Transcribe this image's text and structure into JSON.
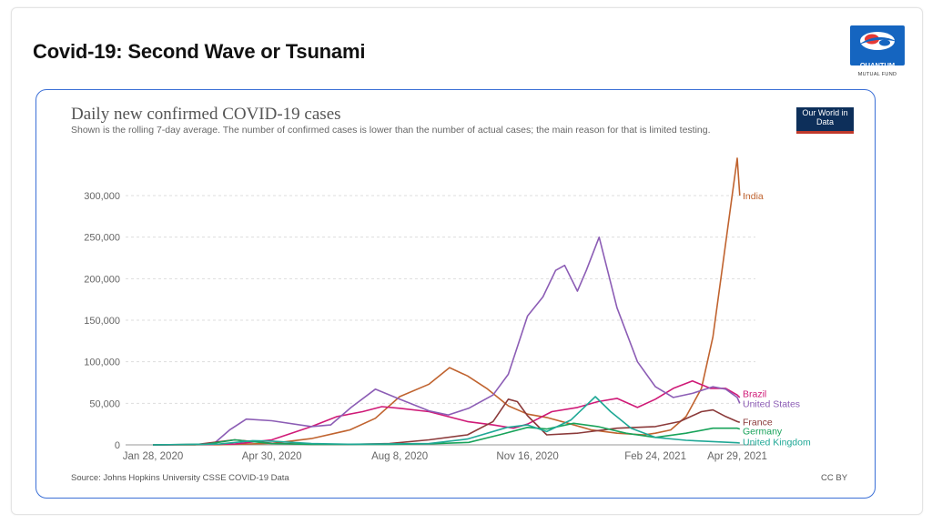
{
  "slide": {
    "title": "Covid-19: Second Wave or Tsunami"
  },
  "logo": {
    "name": "QUANTUM",
    "subtitle": "MUTUAL FUND",
    "colors": {
      "primary": "#1565c0",
      "accent": "#e53935"
    }
  },
  "chart_header": {
    "title": "Daily new confirmed COVID-19 cases",
    "subtitle": "Shown is the rolling 7-day average. The number of confirmed cases is lower than the number of actual cases; the main reason for that is limited testing.",
    "badge": "Our World in Data",
    "source": "Source: Johns Hopkins University CSSE COVID-19 Data",
    "license": "CC BY"
  },
  "chart_data": {
    "type": "line",
    "title": "Daily new confirmed COVID-19 cases",
    "x_type": "date",
    "xlim": [
      "2020-01-28",
      "2021-04-29"
    ],
    "x_ticks": [
      {
        "date": "2020-01-28",
        "label": "Jan 28, 2020"
      },
      {
        "date": "2020-04-30",
        "label": "Apr 30, 2020"
      },
      {
        "date": "2020-08-08",
        "label": "Aug 8, 2020"
      },
      {
        "date": "2020-11-16",
        "label": "Nov 16, 2020"
      },
      {
        "date": "2021-02-24",
        "label": "Feb 24, 2021"
      },
      {
        "date": "2021-04-29",
        "label": "Apr 29, 2021"
      }
    ],
    "ylim": [
      0,
      300000
    ],
    "y_ticks": [
      {
        "value": 0,
        "label": "0"
      },
      {
        "value": 50000,
        "label": "50,000"
      },
      {
        "value": 100000,
        "label": "100,000"
      },
      {
        "value": 150000,
        "label": "150,000"
      },
      {
        "value": 200000,
        "label": "200,000"
      },
      {
        "value": 250000,
        "label": "250,000"
      },
      {
        "value": 300000,
        "label": "300,000"
      }
    ],
    "grid": "horizontal dashed",
    "legend": "line labels at right end",
    "series": [
      {
        "name": "India",
        "color": "#c0632f",
        "points": [
          [
            "2020-01-28",
            0
          ],
          [
            "2020-03-20",
            200
          ],
          [
            "2020-04-30",
            1800
          ],
          [
            "2020-05-31",
            7500
          ],
          [
            "2020-06-30",
            18000
          ],
          [
            "2020-07-20",
            32000
          ],
          [
            "2020-08-08",
            58000
          ],
          [
            "2020-08-31",
            73000
          ],
          [
            "2020-09-16",
            93000
          ],
          [
            "2020-09-30",
            83000
          ],
          [
            "2020-10-15",
            68000
          ],
          [
            "2020-11-01",
            47000
          ],
          [
            "2020-11-16",
            37000
          ],
          [
            "2020-12-01",
            33000
          ],
          [
            "2020-12-20",
            25000
          ],
          [
            "2021-01-05",
            18000
          ],
          [
            "2021-01-25",
            14000
          ],
          [
            "2021-02-15",
            12000
          ],
          [
            "2021-02-24",
            14000
          ],
          [
            "2021-03-08",
            18000
          ],
          [
            "2021-03-20",
            34000
          ],
          [
            "2021-04-01",
            68000
          ],
          [
            "2021-04-10",
            130000
          ],
          [
            "2021-04-18",
            220000
          ],
          [
            "2021-04-25",
            300000
          ],
          [
            "2021-04-29",
            345000
          ],
          [
            "2021-05-01",
            300000
          ]
        ]
      },
      {
        "name": "Brazil",
        "color": "#cf1a77",
        "points": [
          [
            "2020-01-28",
            0
          ],
          [
            "2020-04-01",
            1000
          ],
          [
            "2020-04-30",
            6000
          ],
          [
            "2020-05-31",
            22000
          ],
          [
            "2020-06-20",
            34000
          ],
          [
            "2020-07-10",
            40000
          ],
          [
            "2020-07-25",
            46000
          ],
          [
            "2020-08-08",
            44000
          ],
          [
            "2020-08-31",
            40000
          ],
          [
            "2020-09-30",
            28000
          ],
          [
            "2020-10-20",
            24000
          ],
          [
            "2020-11-05",
            20000
          ],
          [
            "2020-11-16",
            25000
          ],
          [
            "2020-12-05",
            40000
          ],
          [
            "2020-12-25",
            45000
          ],
          [
            "2021-01-10",
            52000
          ],
          [
            "2021-01-25",
            56000
          ],
          [
            "2021-02-10",
            45000
          ],
          [
            "2021-02-24",
            55000
          ],
          [
            "2021-03-10",
            68000
          ],
          [
            "2021-03-25",
            77000
          ],
          [
            "2021-04-08",
            68000
          ],
          [
            "2021-04-20",
            68000
          ],
          [
            "2021-04-29",
            60000
          ],
          [
            "2021-05-01",
            57000
          ]
        ]
      },
      {
        "name": "United States",
        "color": "#8c5db5",
        "points": [
          [
            "2020-01-28",
            0
          ],
          [
            "2020-03-15",
            500
          ],
          [
            "2020-03-28",
            18000
          ],
          [
            "2020-04-10",
            31000
          ],
          [
            "2020-04-30",
            29000
          ],
          [
            "2020-05-31",
            22000
          ],
          [
            "2020-06-15",
            24000
          ],
          [
            "2020-07-01",
            45000
          ],
          [
            "2020-07-20",
            67000
          ],
          [
            "2020-08-08",
            55000
          ],
          [
            "2020-08-31",
            41000
          ],
          [
            "2020-09-15",
            36000
          ],
          [
            "2020-10-01",
            44000
          ],
          [
            "2020-10-20",
            60000
          ],
          [
            "2020-11-01",
            85000
          ],
          [
            "2020-11-16",
            155000
          ],
          [
            "2020-11-28",
            178000
          ],
          [
            "2020-12-08",
            210000
          ],
          [
            "2020-12-15",
            216000
          ],
          [
            "2020-12-25",
            185000
          ],
          [
            "2021-01-01",
            210000
          ],
          [
            "2021-01-11",
            250000
          ],
          [
            "2021-01-25",
            165000
          ],
          [
            "2021-02-10",
            100000
          ],
          [
            "2021-02-24",
            70000
          ],
          [
            "2021-03-10",
            57000
          ],
          [
            "2021-03-25",
            62000
          ],
          [
            "2021-04-10",
            70000
          ],
          [
            "2021-04-20",
            67000
          ],
          [
            "2021-04-29",
            57000
          ],
          [
            "2021-05-01",
            50000
          ]
        ]
      },
      {
        "name": "France",
        "color": "#8b3a3a",
        "points": [
          [
            "2020-01-28",
            0
          ],
          [
            "2020-03-01",
            200
          ],
          [
            "2020-04-01",
            6000
          ],
          [
            "2020-04-30",
            2000
          ],
          [
            "2020-05-31",
            500
          ],
          [
            "2020-06-30",
            600
          ],
          [
            "2020-07-31",
            1500
          ],
          [
            "2020-08-31",
            6000
          ],
          [
            "2020-09-30",
            12000
          ],
          [
            "2020-10-20",
            28000
          ],
          [
            "2020-11-01",
            55000
          ],
          [
            "2020-11-08",
            52000
          ],
          [
            "2020-11-16",
            35000
          ],
          [
            "2020-12-01",
            12000
          ],
          [
            "2020-12-25",
            14000
          ],
          [
            "2021-01-25",
            20000
          ],
          [
            "2021-02-24",
            22000
          ],
          [
            "2021-03-15",
            28000
          ],
          [
            "2021-04-01",
            40000
          ],
          [
            "2021-04-10",
            42000
          ],
          [
            "2021-04-20",
            34000
          ],
          [
            "2021-04-29",
            28000
          ],
          [
            "2021-05-01",
            27000
          ]
        ]
      },
      {
        "name": "Germany",
        "color": "#18a35a",
        "points": [
          [
            "2020-01-28",
            0
          ],
          [
            "2020-03-10",
            800
          ],
          [
            "2020-04-01",
            6000
          ],
          [
            "2020-04-30",
            1500
          ],
          [
            "2020-05-31",
            500
          ],
          [
            "2020-07-31",
            700
          ],
          [
            "2020-09-01",
            1300
          ],
          [
            "2020-10-01",
            3000
          ],
          [
            "2020-10-25",
            12000
          ],
          [
            "2020-11-16",
            21000
          ],
          [
            "2020-12-01",
            19000
          ],
          [
            "2020-12-22",
            26000
          ],
          [
            "2021-01-10",
            22000
          ],
          [
            "2021-02-01",
            14000
          ],
          [
            "2021-02-24",
            9000
          ],
          [
            "2021-03-20",
            14000
          ],
          [
            "2021-04-10",
            20000
          ],
          [
            "2021-04-29",
            20000
          ],
          [
            "2021-05-01",
            19000
          ]
        ]
      },
      {
        "name": "United Kingdom",
        "color": "#1fa896",
        "points": [
          [
            "2020-01-28",
            0
          ],
          [
            "2020-03-20",
            1000
          ],
          [
            "2020-04-15",
            5000
          ],
          [
            "2020-04-30",
            4500
          ],
          [
            "2020-05-31",
            1500
          ],
          [
            "2020-06-30",
            800
          ],
          [
            "2020-08-31",
            1500
          ],
          [
            "2020-09-30",
            7000
          ],
          [
            "2020-10-31",
            21000
          ],
          [
            "2020-11-16",
            24000
          ],
          [
            "2020-12-01",
            16000
          ],
          [
            "2020-12-20",
            30000
          ],
          [
            "2021-01-08",
            58000
          ],
          [
            "2021-01-20",
            40000
          ],
          [
            "2021-02-05",
            20000
          ],
          [
            "2021-02-24",
            9000
          ],
          [
            "2021-03-20",
            5500
          ],
          [
            "2021-04-29",
            2500
          ],
          [
            "2021-05-01",
            2200
          ]
        ]
      }
    ]
  }
}
